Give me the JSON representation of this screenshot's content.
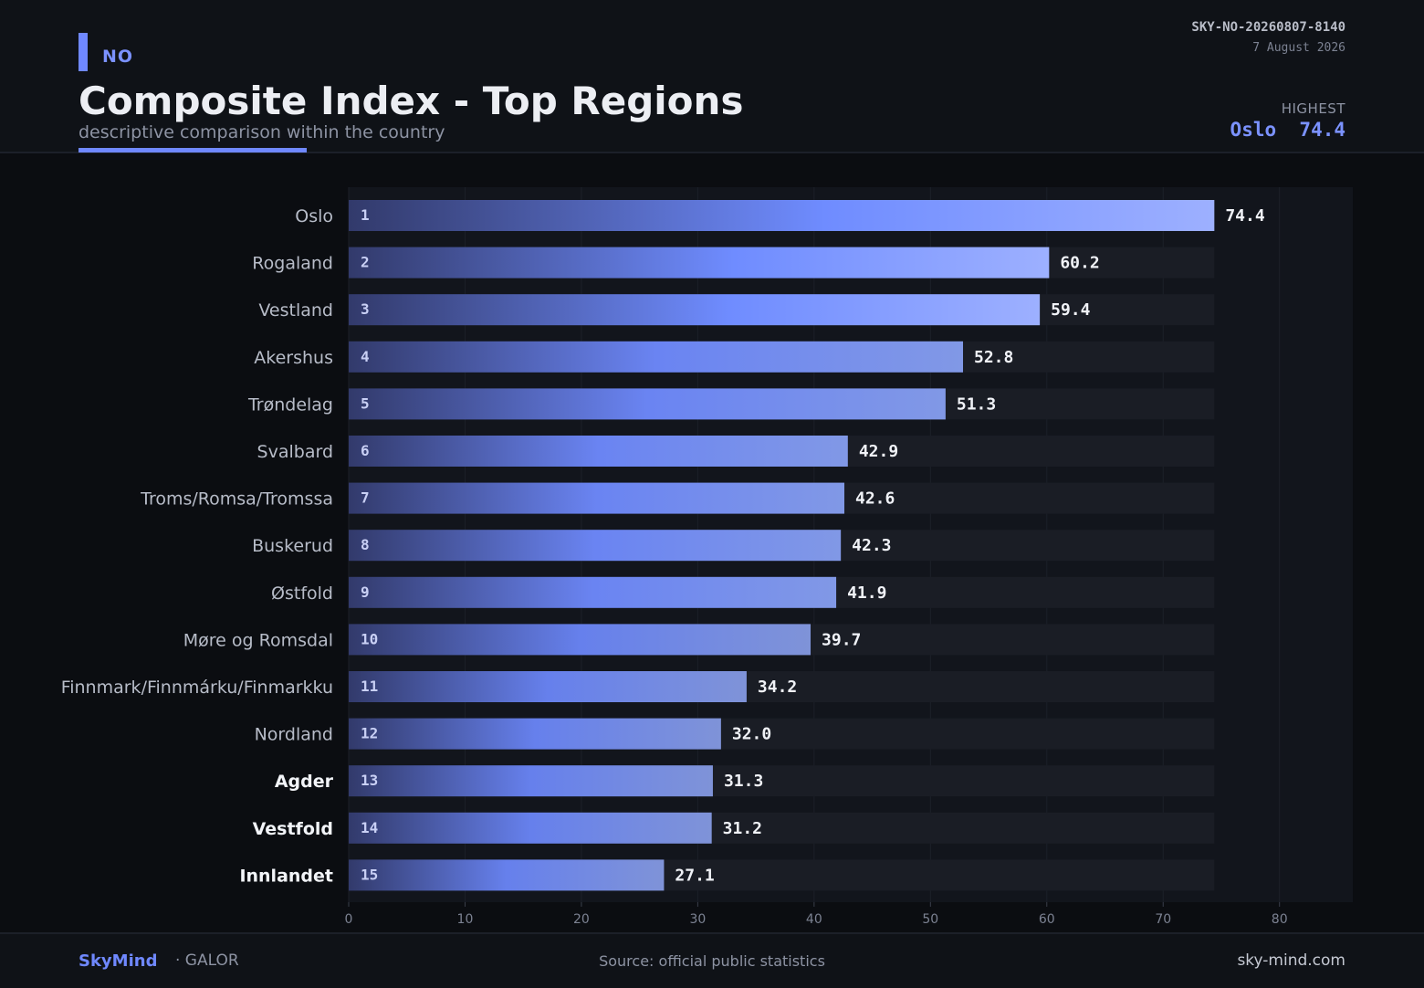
{
  "header": {
    "country_code": "NO",
    "title": "Composite Index - Top Regions",
    "subtitle": "descriptive comparison within the country",
    "doc_id": "SKY-NO-20260807-8140",
    "date": "7 August 2026",
    "highest_label": "HIGHEST",
    "highest_region": "Oslo",
    "highest_value": "74.4"
  },
  "colors": {
    "accent": "#6f88ff",
    "bar_dark": "#323a6b",
    "bar_mid": "#6f8cff",
    "bar_light": "#9db0ff",
    "track": "#1a1d25",
    "background": "#0b0d11"
  },
  "chart_data": {
    "type": "bar",
    "orientation": "horizontal",
    "categories": [
      "Oslo",
      "Rogaland",
      "Vestland",
      "Akershus",
      "Trøndelag",
      "Svalbard",
      "Troms/Romsa/Tromssa",
      "Buskerud",
      "Østfold",
      "Møre og Romsdal",
      "Finnmark/Finnmárku/Finmarkku",
      "Nordland",
      "Agder",
      "Vestfold",
      "Innlandet"
    ],
    "ranks": [
      "1",
      "2",
      "3",
      "4",
      "5",
      "6",
      "7",
      "8",
      "9",
      "10",
      "11",
      "12",
      "13",
      "14",
      "15"
    ],
    "values": [
      74.4,
      60.2,
      59.4,
      52.8,
      51.3,
      42.9,
      42.6,
      42.3,
      41.9,
      39.7,
      34.2,
      32.0,
      31.3,
      31.2,
      27.1
    ],
    "value_labels": [
      "74.4",
      "60.2",
      "59.4",
      "52.8",
      "51.3",
      "42.9",
      "42.6",
      "42.3",
      "41.9",
      "39.7",
      "34.2",
      "32.0",
      "31.3",
      "31.2",
      "27.1"
    ],
    "highlighted_categories": [
      "Agder",
      "Vestfold",
      "Innlandet"
    ],
    "xlim": [
      0,
      86.3
    ],
    "xticks": [
      0,
      10,
      20,
      30,
      40,
      50,
      60,
      70,
      80
    ],
    "xlabel": "",
    "ylabel": "",
    "grid": true,
    "legend": "none"
  },
  "footer": {
    "brand": "SkyMind",
    "brand_sub": "· GALOR",
    "source": "Source: official public statistics",
    "site": "sky-mind.com"
  }
}
